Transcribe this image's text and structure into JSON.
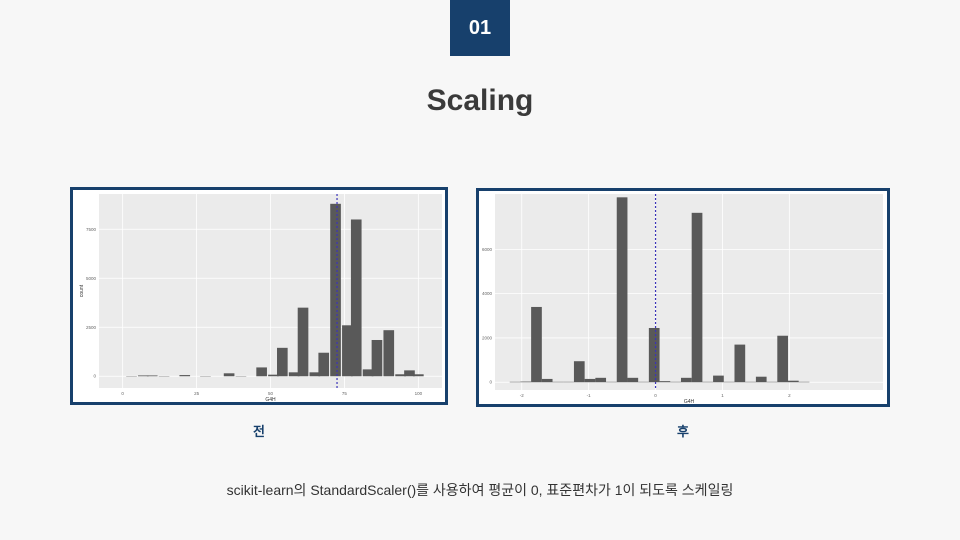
{
  "badge": "01",
  "title": "Scaling",
  "captions": {
    "before": "전",
    "after": "후"
  },
  "description": "scikit-learn의 StandardScaler()를 사용하여 평균이 0, 표준편차가 1이 되도록 스케일링",
  "colors": {
    "accent": "#17406c",
    "bar": "#595959",
    "plot_bg": "#ebebeb",
    "mean_line": "#3b33b8"
  },
  "chart_data": [
    {
      "type": "bar",
      "xlabel": "G4H",
      "ylabel": "count",
      "xlim": [
        -8,
        108
      ],
      "ylim": [
        -600,
        9300
      ],
      "xticks": [
        "0",
        "25",
        "50",
        "75",
        "100"
      ],
      "xtick_values": [
        0,
        25,
        50,
        75,
        100
      ],
      "yticks": [
        "0",
        "2500",
        "5000",
        "7500"
      ],
      "ytick_values": [
        0,
        2500,
        5000,
        7500
      ],
      "mean_line_x": 72.5,
      "bin_width": 3.6,
      "x": [
        3,
        7,
        10,
        14,
        21,
        28,
        36,
        40,
        47,
        51,
        54,
        58,
        61,
        65,
        68,
        72,
        76,
        79,
        83,
        86,
        90,
        94,
        97,
        100
      ],
      "values": [
        10,
        40,
        40,
        10,
        60,
        10,
        150,
        10,
        450,
        80,
        1450,
        200,
        3500,
        200,
        1200,
        8800,
        2600,
        8000,
        350,
        1850,
        2350,
        100,
        300,
        100
      ]
    },
    {
      "type": "bar",
      "xlabel": "G4H",
      "ylabel": "count",
      "xlim": [
        -2.4,
        3.4
      ],
      "ylim": [
        -350,
        8500
      ],
      "xticks": [
        "-2",
        "-1",
        "0",
        "1",
        "2"
      ],
      "xtick_values": [
        -2,
        -1,
        0,
        1,
        2
      ],
      "yticks": [
        "0",
        "2000",
        "4000",
        "6000"
      ],
      "ytick_values": [
        0,
        2000,
        4000,
        6000
      ],
      "mean_line_x": 0,
      "bin_width": 0.16,
      "x": [
        -2.1,
        -1.94,
        -1.78,
        -1.62,
        -1.46,
        -1.3,
        -1.14,
        -0.98,
        -0.82,
        -0.66,
        -0.5,
        -0.34,
        -0.18,
        -0.02,
        0.14,
        0.3,
        0.46,
        0.62,
        0.78,
        0.94,
        1.1,
        1.26,
        1.42,
        1.58,
        1.74,
        1.9,
        2.06,
        2.22
      ],
      "values": [
        20,
        30,
        3400,
        150,
        20,
        20,
        950,
        150,
        200,
        20,
        8350,
        200,
        20,
        2450,
        50,
        20,
        200,
        7650,
        20,
        300,
        20,
        1700,
        20,
        250,
        20,
        2100,
        70,
        20
      ]
    }
  ]
}
